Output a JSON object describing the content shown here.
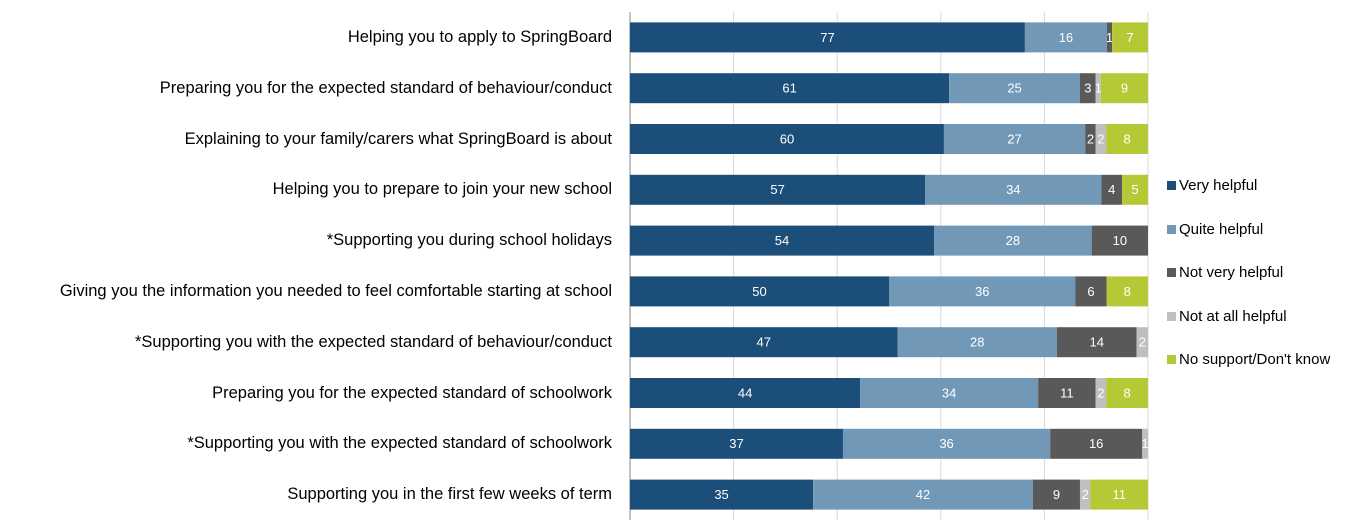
{
  "chart_data": {
    "type": "bar",
    "orientation": "horizontal",
    "stacked": "percent",
    "categories": [
      "Helping you to apply to SpringBoard",
      "Preparing you for the expected standard of behaviour/conduct",
      "Explaining to your family/carers what SpringBoard is about",
      "Helping you to prepare to join your new school",
      "*Supporting you during school holidays",
      "Giving you the information you needed to feel comfortable starting at school",
      "*Supporting you with the expected standard of behaviour/conduct",
      "Preparing you for the expected standard of schoolwork",
      "*Supporting you with the expected standard of schoolwork",
      "Supporting you in the first few weeks of term"
    ],
    "series": [
      {
        "name": "Very helpful",
        "color": "#1c4e7a",
        "values": [
          77,
          61,
          60,
          57,
          54,
          50,
          47,
          44,
          37,
          35
        ]
      },
      {
        "name": "Quite helpful",
        "color": "#7298b8",
        "values": [
          16,
          25,
          27,
          34,
          28,
          36,
          28,
          34,
          36,
          42
        ]
      },
      {
        "name": "Not very helpful",
        "color": "#595959",
        "values": [
          1,
          3,
          2,
          4,
          10,
          6,
          14,
          11,
          16,
          9
        ]
      },
      {
        "name": "Not at all helpful",
        "color": "#bfbfbf",
        "values": [
          null,
          1,
          2,
          null,
          null,
          null,
          2,
          2,
          1,
          2
        ]
      },
      {
        "name": "No support/Don't know",
        "color": "#b5c936",
        "values": [
          7,
          9,
          8,
          5,
          null,
          8,
          null,
          8,
          null,
          11
        ]
      }
    ],
    "xlim": [
      0,
      100
    ],
    "xticks": [
      0,
      20,
      40,
      60,
      80,
      100
    ],
    "grid": true,
    "legend": "right"
  }
}
